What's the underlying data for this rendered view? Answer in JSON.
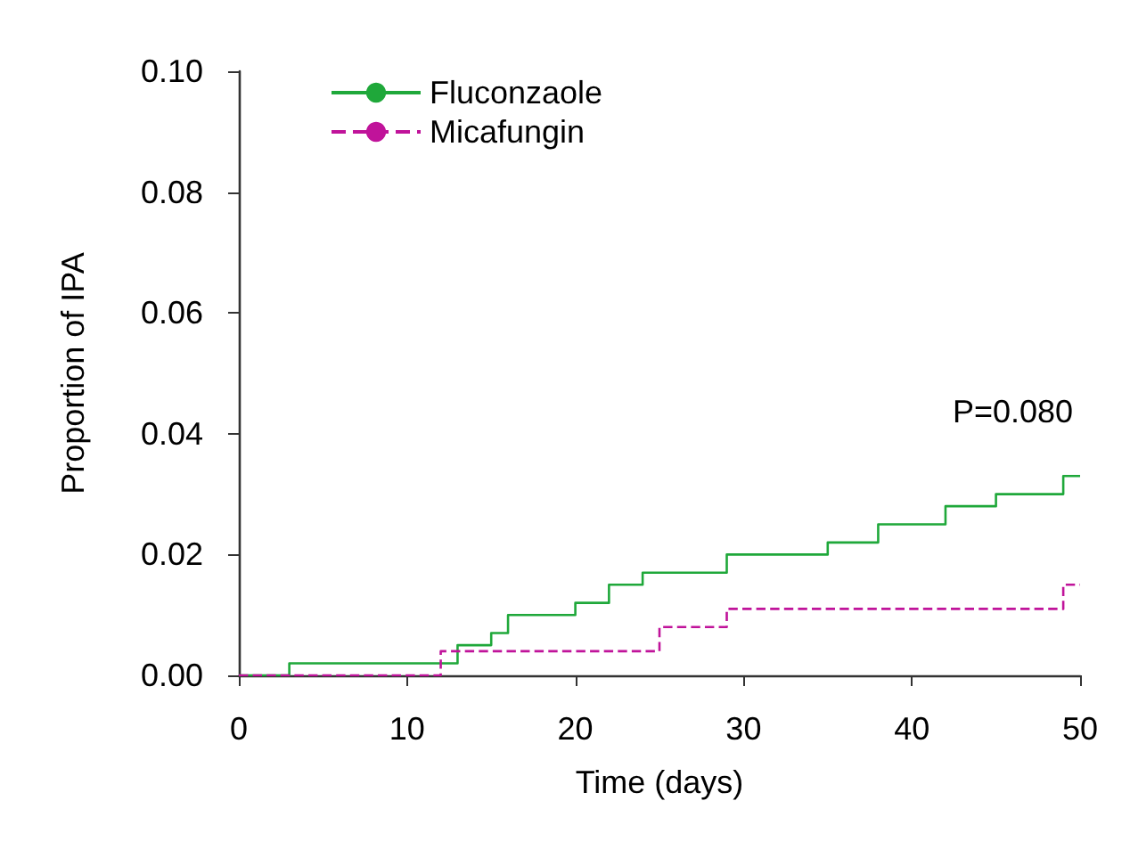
{
  "chart_data": {
    "type": "step",
    "xlabel": "Time (days)",
    "ylabel": "Proportion of IPA",
    "series": [
      {
        "name": "Fluconzaole",
        "color": "#1fa83a",
        "line_style": "solid",
        "x": [
          0,
          3,
          13,
          15,
          16,
          20,
          22,
          24,
          29,
          35,
          38,
          42,
          45,
          49,
          50
        ],
        "values": [
          0,
          0.002,
          0.005,
          0.007,
          0.01,
          0.012,
          0.015,
          0.017,
          0.02,
          0.022,
          0.025,
          0.028,
          0.03,
          0.033,
          0.033
        ]
      },
      {
        "name": "Micafungin",
        "color": "#c0139a",
        "line_style": "dashed",
        "x": [
          0,
          12,
          25,
          29,
          49,
          50
        ],
        "values": [
          0,
          0.004,
          0.008,
          0.011,
          0.015,
          0.015
        ]
      }
    ],
    "xlim": [
      0,
      50
    ],
    "xticks": [
      0,
      10,
      20,
      30,
      40,
      50
    ],
    "ylim": [
      0,
      0.1
    ],
    "yticks": [
      {
        "value": 0,
        "label": "0.00"
      },
      0.02,
      0.04,
      0.06,
      0.08,
      {
        "value": 0.1,
        "label": "0.10"
      }
    ],
    "annotations": [
      "P=0.080"
    ],
    "legend": "top left",
    "grid": false,
    "marker": "none"
  }
}
